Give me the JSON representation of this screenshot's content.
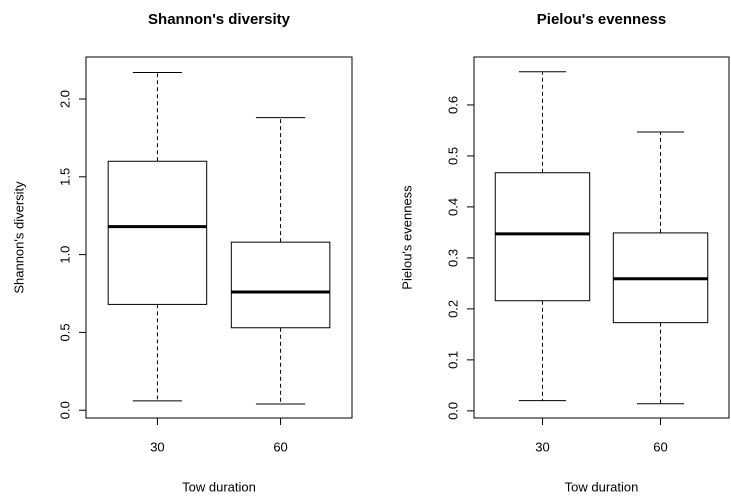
{
  "chart_data": [
    {
      "type": "box",
      "title": "Shannon's diversity",
      "xlabel": "Tow duration",
      "ylabel": "Shannon's diversity",
      "categories": [
        "30",
        "60"
      ],
      "min": [
        0.06,
        0.04
      ],
      "q1": [
        0.68,
        0.53
      ],
      "median": [
        1.18,
        0.76
      ],
      "q3": [
        1.6,
        1.08
      ],
      "max": [
        2.17,
        1.88
      ],
      "ylim": [
        -0.05,
        2.27
      ],
      "yticks": [
        {
          "value": 0,
          "label": "0.0"
        },
        0.5,
        {
          "value": 1,
          "label": "1.0"
        },
        1.5,
        {
          "value": 2,
          "label": "2.0"
        }
      ],
      "color": "#ffffff"
    },
    {
      "type": "box",
      "title": "Pielou's evenness",
      "xlabel": "Tow duration",
      "ylabel": "Pielou's evenness",
      "categories": [
        "30",
        "60"
      ],
      "min": [
        0.02,
        0.014
      ],
      "q1": [
        0.216,
        0.173
      ],
      "median": [
        0.347,
        0.259
      ],
      "q3": [
        0.467,
        0.349
      ],
      "max": [
        0.665,
        0.547
      ],
      "ylim": [
        -0.014,
        0.694
      ],
      "yticks": [
        {
          "value": 0,
          "label": "0.0"
        },
        0.1,
        0.2,
        0.3,
        0.4,
        0.5,
        0.6
      ],
      "color": "#ffffff"
    }
  ]
}
